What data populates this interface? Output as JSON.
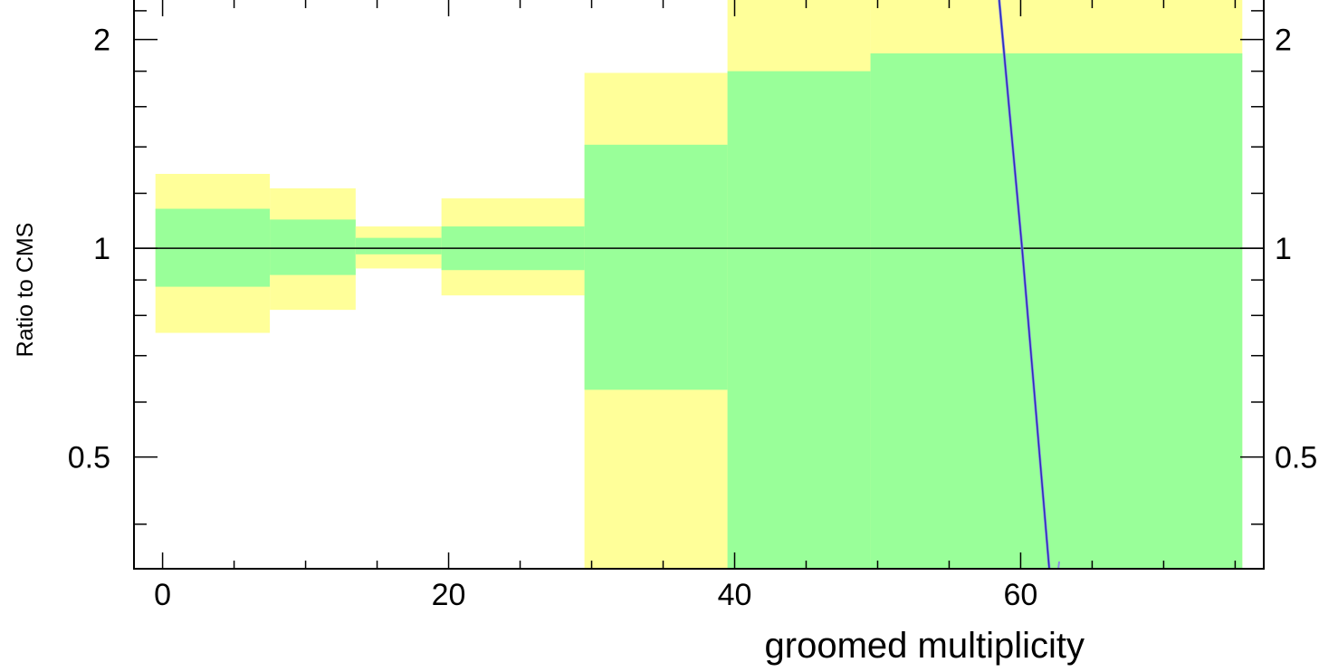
{
  "chart_data": {
    "type": "area",
    "title": "",
    "xlabel": "groomed multiplicity",
    "ylabel": "Ratio to CMS",
    "xlim": [
      -2,
      77
    ],
    "ylim": [
      0.345,
      2.28
    ],
    "yscale": "log",
    "grid": false,
    "x_ticks": [
      {
        "value": 0,
        "label": "0"
      },
      {
        "value": 20,
        "label": "20"
      },
      {
        "value": 40,
        "label": "40"
      },
      {
        "value": 60,
        "label": "60"
      }
    ],
    "y_ticks": [
      {
        "value": 0.5,
        "label": "0.5"
      },
      {
        "value": 1,
        "label": "1"
      },
      {
        "value": 2,
        "label": "2"
      }
    ],
    "reference_line": 1,
    "colors": {
      "outer_band": "#ffff99",
      "inner_band": "#99ff99",
      "curve": "#2b2bb8",
      "curve_highlight": "#8a8ae6"
    },
    "bins": [
      {
        "x_low": -0.5,
        "x_high": 7.5,
        "outer_low": 0.755,
        "outer_high": 1.28,
        "inner_low": 0.88,
        "inner_high": 1.14
      },
      {
        "x_low": 7.5,
        "x_high": 13.5,
        "outer_low": 0.815,
        "outer_high": 1.22,
        "inner_low": 0.915,
        "inner_high": 1.1
      },
      {
        "x_low": 13.5,
        "x_high": 19.5,
        "outer_low": 0.935,
        "outer_high": 1.075,
        "inner_low": 0.98,
        "inner_high": 1.035
      },
      {
        "x_low": 19.5,
        "x_high": 29.5,
        "outer_low": 0.855,
        "outer_high": 1.18,
        "inner_low": 0.93,
        "inner_high": 1.075
      },
      {
        "x_low": 29.5,
        "x_high": 39.5,
        "outer_low": 0.345,
        "outer_high": 1.79,
        "inner_low": 0.625,
        "inner_high": 1.41
      },
      {
        "x_low": 39.5,
        "x_high": 49.5,
        "outer_low": 0.345,
        "outer_high": 2.28,
        "inner_low": 0.345,
        "inner_high": 1.8
      },
      {
        "x_low": 49.5,
        "x_high": 75.5,
        "outer_low": 0.345,
        "outer_high": 2.28,
        "inner_low": 0.345,
        "inner_high": 1.91
      }
    ],
    "series": [
      {
        "x": [
          58.5,
          60.1,
          62.0
        ],
        "y": [
          2.28,
          1.0,
          0.345
        ]
      }
    ]
  }
}
